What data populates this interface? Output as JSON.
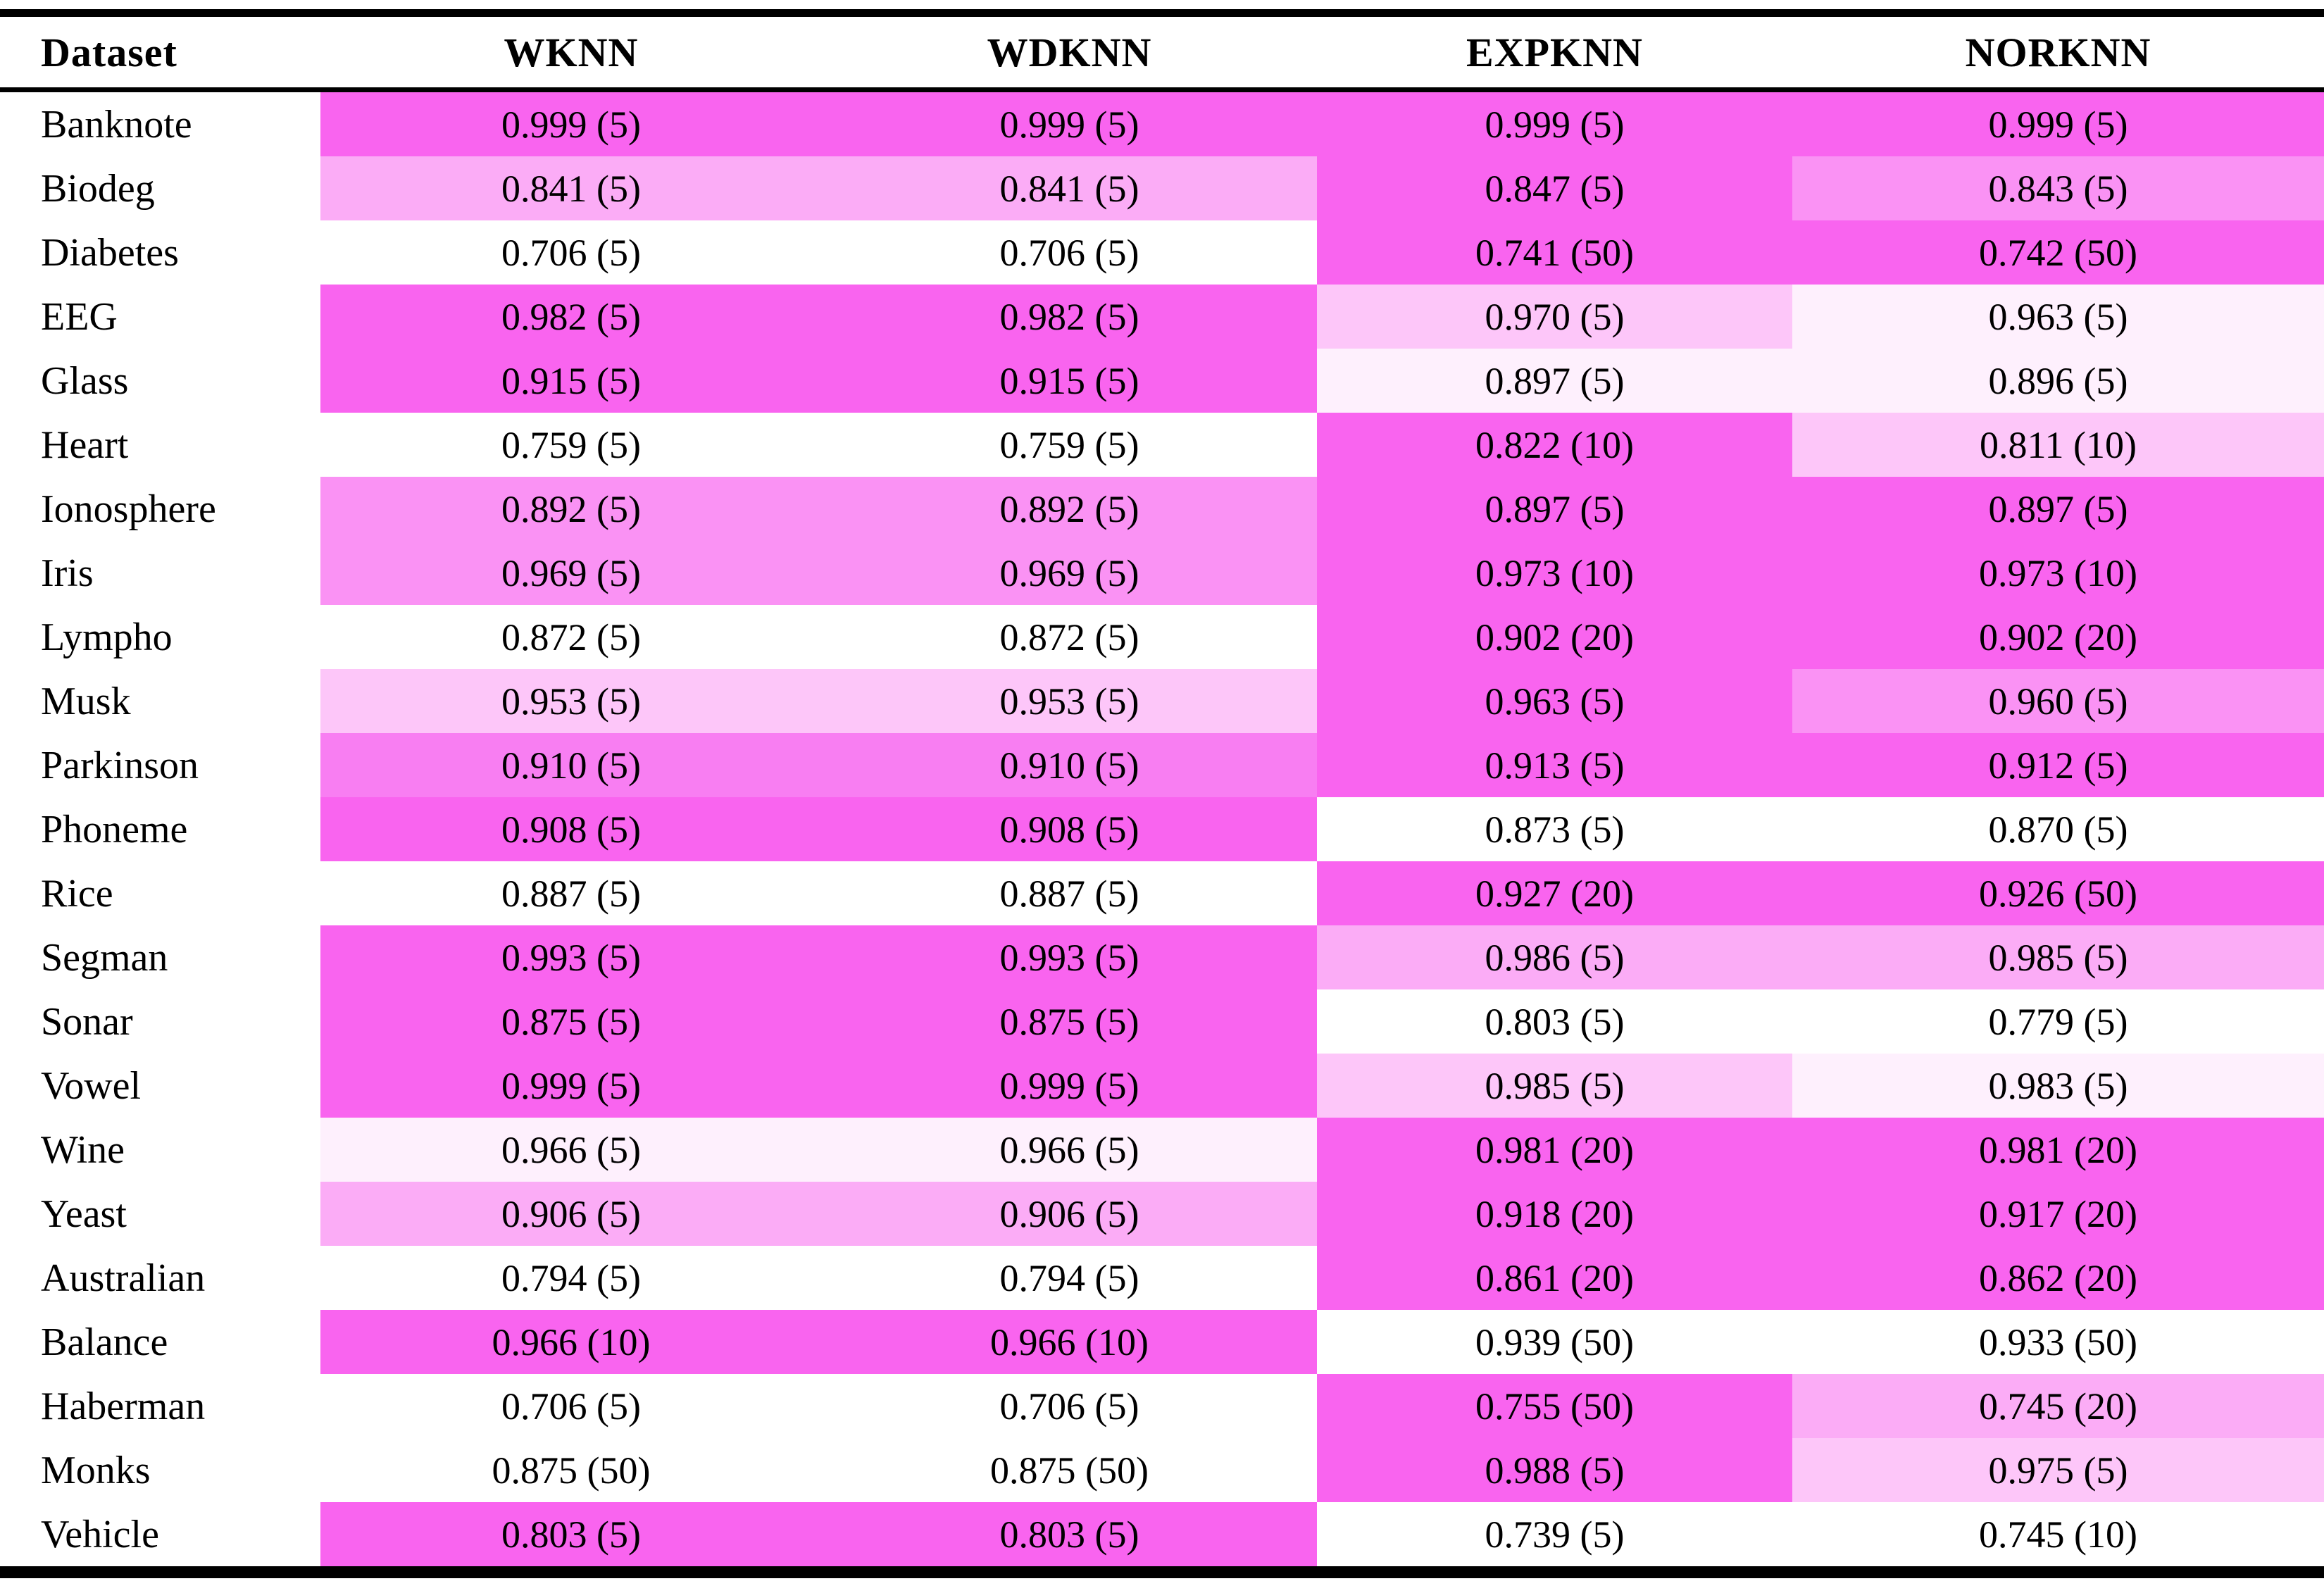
{
  "page": {
    "background": "#ffffff"
  },
  "palette": {
    "vivid": "#f964ef",
    "strong": "#f87ef2",
    "medium": "#fa92f4",
    "light": "#fbacf6",
    "pale": "#fdc6f9",
    "faint": "#fef0fd",
    "white": "#ffffff"
  },
  "table": {
    "columns": [
      {
        "key": "dataset",
        "label": "Dataset"
      },
      {
        "key": "wknn",
        "label": "WKNN"
      },
      {
        "key": "wdknn",
        "label": "WDKNN"
      },
      {
        "key": "expknn",
        "label": "EXPKNN"
      },
      {
        "key": "norknn",
        "label": "NORKNN"
      }
    ],
    "rows": [
      {
        "dataset": "Banknote",
        "cells": [
          {
            "text": "0.999 (5)",
            "bg": "#f964ef"
          },
          {
            "text": "0.999 (5)",
            "bg": "#f964ef"
          },
          {
            "text": "0.999 (5)",
            "bg": "#f964ef"
          },
          {
            "text": "0.999 (5)",
            "bg": "#f964ef"
          }
        ]
      },
      {
        "dataset": "Biodeg",
        "cells": [
          {
            "text": "0.841 (5)",
            "bg": "#fbacf6"
          },
          {
            "text": "0.841 (5)",
            "bg": "#fbacf6"
          },
          {
            "text": "0.847 (5)",
            "bg": "#f964ef"
          },
          {
            "text": "0.843 (5)",
            "bg": "#fa92f4"
          }
        ]
      },
      {
        "dataset": "Diabetes",
        "cells": [
          {
            "text": "0.706 (5)",
            "bg": "#ffffff"
          },
          {
            "text": "0.706 (5)",
            "bg": "#ffffff"
          },
          {
            "text": "0.741 (50)",
            "bg": "#f964ef"
          },
          {
            "text": "0.742 (50)",
            "bg": "#f964ef"
          }
        ]
      },
      {
        "dataset": "EEG",
        "cells": [
          {
            "text": "0.982 (5)",
            "bg": "#f964ef"
          },
          {
            "text": "0.982 (5)",
            "bg": "#f964ef"
          },
          {
            "text": "0.970 (5)",
            "bg": "#fdc6f9"
          },
          {
            "text": "0.963 (5)",
            "bg": "#fef0fd"
          }
        ]
      },
      {
        "dataset": "Glass",
        "cells": [
          {
            "text": "0.915 (5)",
            "bg": "#f964ef"
          },
          {
            "text": "0.915 (5)",
            "bg": "#f964ef"
          },
          {
            "text": "0.897 (5)",
            "bg": "#fef0fd"
          },
          {
            "text": "0.896 (5)",
            "bg": "#fef0fd"
          }
        ]
      },
      {
        "dataset": "Heart",
        "cells": [
          {
            "text": "0.759 (5)",
            "bg": "#ffffff"
          },
          {
            "text": "0.759 (5)",
            "bg": "#ffffff"
          },
          {
            "text": "0.822 (10)",
            "bg": "#f964ef"
          },
          {
            "text": "0.811 (10)",
            "bg": "#fdc6f9"
          }
        ]
      },
      {
        "dataset": "Ionosphere",
        "cells": [
          {
            "text": "0.892 (5)",
            "bg": "#fa92f4"
          },
          {
            "text": "0.892 (5)",
            "bg": "#fa92f4"
          },
          {
            "text": "0.897 (5)",
            "bg": "#f964ef"
          },
          {
            "text": "0.897 (5)",
            "bg": "#f964ef"
          }
        ]
      },
      {
        "dataset": "Iris",
        "cells": [
          {
            "text": "0.969 (5)",
            "bg": "#fa92f4"
          },
          {
            "text": "0.969 (5)",
            "bg": "#fa92f4"
          },
          {
            "text": "0.973 (10)",
            "bg": "#f964ef"
          },
          {
            "text": "0.973 (10)",
            "bg": "#f964ef"
          }
        ]
      },
      {
        "dataset": "Lympho",
        "cells": [
          {
            "text": "0.872 (5)",
            "bg": "#ffffff"
          },
          {
            "text": "0.872 (5)",
            "bg": "#ffffff"
          },
          {
            "text": "0.902 (20)",
            "bg": "#f964ef"
          },
          {
            "text": "0.902 (20)",
            "bg": "#f964ef"
          }
        ]
      },
      {
        "dataset": "Musk",
        "cells": [
          {
            "text": "0.953 (5)",
            "bg": "#fdc6f9"
          },
          {
            "text": "0.953 (5)",
            "bg": "#fdc6f9"
          },
          {
            "text": "0.963 (5)",
            "bg": "#f964ef"
          },
          {
            "text": "0.960 (5)",
            "bg": "#fa92f4"
          }
        ]
      },
      {
        "dataset": "Parkinson",
        "cells": [
          {
            "text": "0.910 (5)",
            "bg": "#f87ef2"
          },
          {
            "text": "0.910 (5)",
            "bg": "#f87ef2"
          },
          {
            "text": "0.913 (5)",
            "bg": "#f964ef"
          },
          {
            "text": "0.912 (5)",
            "bg": "#f964ef"
          }
        ]
      },
      {
        "dataset": "Phoneme",
        "cells": [
          {
            "text": "0.908 (5)",
            "bg": "#f964ef"
          },
          {
            "text": "0.908 (5)",
            "bg": "#f964ef"
          },
          {
            "text": "0.873 (5)",
            "bg": "#ffffff"
          },
          {
            "text": "0.870 (5)",
            "bg": "#ffffff"
          }
        ]
      },
      {
        "dataset": "Rice",
        "cells": [
          {
            "text": "0.887 (5)",
            "bg": "#ffffff"
          },
          {
            "text": "0.887 (5)",
            "bg": "#ffffff"
          },
          {
            "text": "0.927 (20)",
            "bg": "#f964ef"
          },
          {
            "text": "0.926 (50)",
            "bg": "#f964ef"
          }
        ]
      },
      {
        "dataset": "Segman",
        "cells": [
          {
            "text": "0.993 (5)",
            "bg": "#f964ef"
          },
          {
            "text": "0.993 (5)",
            "bg": "#f964ef"
          },
          {
            "text": "0.986 (5)",
            "bg": "#fbacf6"
          },
          {
            "text": "0.985 (5)",
            "bg": "#fbacf6"
          }
        ]
      },
      {
        "dataset": "Sonar",
        "cells": [
          {
            "text": "0.875 (5)",
            "bg": "#f964ef"
          },
          {
            "text": "0.875 (5)",
            "bg": "#f964ef"
          },
          {
            "text": "0.803 (5)",
            "bg": "#ffffff"
          },
          {
            "text": "0.779 (5)",
            "bg": "#ffffff"
          }
        ]
      },
      {
        "dataset": "Vowel",
        "cells": [
          {
            "text": "0.999 (5)",
            "bg": "#f964ef"
          },
          {
            "text": "0.999 (5)",
            "bg": "#f964ef"
          },
          {
            "text": "0.985 (5)",
            "bg": "#fdc6f9"
          },
          {
            "text": "0.983 (5)",
            "bg": "#fef0fd"
          }
        ]
      },
      {
        "dataset": "Wine",
        "cells": [
          {
            "text": "0.966 (5)",
            "bg": "#fef0fd"
          },
          {
            "text": "0.966 (5)",
            "bg": "#fef0fd"
          },
          {
            "text": "0.981 (20)",
            "bg": "#f964ef"
          },
          {
            "text": "0.981 (20)",
            "bg": "#f964ef"
          }
        ]
      },
      {
        "dataset": "Yeast",
        "cells": [
          {
            "text": "0.906 (5)",
            "bg": "#fbacf6"
          },
          {
            "text": "0.906 (5)",
            "bg": "#fbacf6"
          },
          {
            "text": "0.918 (20)",
            "bg": "#f964ef"
          },
          {
            "text": "0.917 (20)",
            "bg": "#f964ef"
          }
        ]
      },
      {
        "dataset": "Australian",
        "cells": [
          {
            "text": "0.794 (5)",
            "bg": "#ffffff"
          },
          {
            "text": "0.794 (5)",
            "bg": "#ffffff"
          },
          {
            "text": "0.861 (20)",
            "bg": "#f964ef"
          },
          {
            "text": "0.862 (20)",
            "bg": "#f964ef"
          }
        ]
      },
      {
        "dataset": "Balance",
        "cells": [
          {
            "text": "0.966 (10)",
            "bg": "#f964ef"
          },
          {
            "text": "0.966 (10)",
            "bg": "#f964ef"
          },
          {
            "text": "0.939 (50)",
            "bg": "#ffffff"
          },
          {
            "text": "0.933 (50)",
            "bg": "#ffffff"
          }
        ]
      },
      {
        "dataset": "Haberman",
        "cells": [
          {
            "text": "0.706 (5)",
            "bg": "#ffffff"
          },
          {
            "text": "0.706 (5)",
            "bg": "#ffffff"
          },
          {
            "text": "0.755 (50)",
            "bg": "#f964ef"
          },
          {
            "text": "0.745 (20)",
            "bg": "#fbacf6"
          }
        ]
      },
      {
        "dataset": "Monks",
        "cells": [
          {
            "text": "0.875 (50)",
            "bg": "#ffffff"
          },
          {
            "text": "0.875 (50)",
            "bg": "#ffffff"
          },
          {
            "text": "0.988 (5)",
            "bg": "#f964ef"
          },
          {
            "text": "0.975 (5)",
            "bg": "#fdc6f9"
          }
        ]
      },
      {
        "dataset": "Vehicle",
        "cells": [
          {
            "text": "0.803 (5)",
            "bg": "#f964ef"
          },
          {
            "text": "0.803 (5)",
            "bg": "#f964ef"
          },
          {
            "text": "0.739 (5)",
            "bg": "#ffffff"
          },
          {
            "text": "0.745 (10)",
            "bg": "#ffffff"
          }
        ]
      }
    ]
  },
  "chart_data": {
    "type": "heatmap",
    "title": "",
    "row_label_column": "Dataset",
    "columns": [
      "WKNN",
      "WDKNN",
      "EXPKNN",
      "NORKNN"
    ],
    "rows": [
      "Banknote",
      "Biodeg",
      "Diabetes",
      "EEG",
      "Glass",
      "Heart",
      "Ionosphere",
      "Iris",
      "Lympho",
      "Musk",
      "Parkinson",
      "Phoneme",
      "Rice",
      "Segman",
      "Sonar",
      "Vowel",
      "Wine",
      "Yeast",
      "Australian",
      "Balance",
      "Haberman",
      "Monks",
      "Vehicle"
    ],
    "accuracy": [
      [
        0.999,
        0.999,
        0.999,
        0.999
      ],
      [
        0.841,
        0.841,
        0.847,
        0.843
      ],
      [
        0.706,
        0.706,
        0.741,
        0.742
      ],
      [
        0.982,
        0.982,
        0.97,
        0.963
      ],
      [
        0.915,
        0.915,
        0.897,
        0.896
      ],
      [
        0.759,
        0.759,
        0.822,
        0.811
      ],
      [
        0.892,
        0.892,
        0.897,
        0.897
      ],
      [
        0.969,
        0.969,
        0.973,
        0.973
      ],
      [
        0.872,
        0.872,
        0.902,
        0.902
      ],
      [
        0.953,
        0.953,
        0.963,
        0.96
      ],
      [
        0.91,
        0.91,
        0.913,
        0.912
      ],
      [
        0.908,
        0.908,
        0.873,
        0.87
      ],
      [
        0.887,
        0.887,
        0.927,
        0.926
      ],
      [
        0.993,
        0.993,
        0.986,
        0.985
      ],
      [
        0.875,
        0.875,
        0.803,
        0.779
      ],
      [
        0.999,
        0.999,
        0.985,
        0.983
      ],
      [
        0.966,
        0.966,
        0.981,
        0.981
      ],
      [
        0.906,
        0.906,
        0.918,
        0.917
      ],
      [
        0.794,
        0.794,
        0.861,
        0.862
      ],
      [
        0.966,
        0.966,
        0.939,
        0.933
      ],
      [
        0.706,
        0.706,
        0.755,
        0.745
      ],
      [
        0.875,
        0.875,
        0.988,
        0.975
      ],
      [
        0.803,
        0.803,
        0.739,
        0.745
      ]
    ],
    "k_values": [
      [
        5,
        5,
        5,
        5
      ],
      [
        5,
        5,
        5,
        5
      ],
      [
        5,
        5,
        50,
        50
      ],
      [
        5,
        5,
        5,
        5
      ],
      [
        5,
        5,
        5,
        5
      ],
      [
        5,
        5,
        10,
        10
      ],
      [
        5,
        5,
        5,
        5
      ],
      [
        5,
        5,
        10,
        10
      ],
      [
        5,
        5,
        20,
        20
      ],
      [
        5,
        5,
        5,
        5
      ],
      [
        5,
        5,
        5,
        5
      ],
      [
        5,
        5,
        5,
        5
      ],
      [
        5,
        5,
        20,
        50
      ],
      [
        5,
        5,
        5,
        5
      ],
      [
        5,
        5,
        5,
        5
      ],
      [
        5,
        5,
        5,
        5
      ],
      [
        5,
        5,
        20,
        20
      ],
      [
        5,
        5,
        20,
        20
      ],
      [
        5,
        5,
        20,
        20
      ],
      [
        10,
        10,
        50,
        50
      ],
      [
        5,
        5,
        50,
        20
      ],
      [
        50,
        50,
        5,
        5
      ],
      [
        5,
        5,
        5,
        10
      ]
    ],
    "legend_position": "none",
    "grid": false,
    "colormap": "white-to-magenta, shaded per cell by relative accuracy"
  }
}
